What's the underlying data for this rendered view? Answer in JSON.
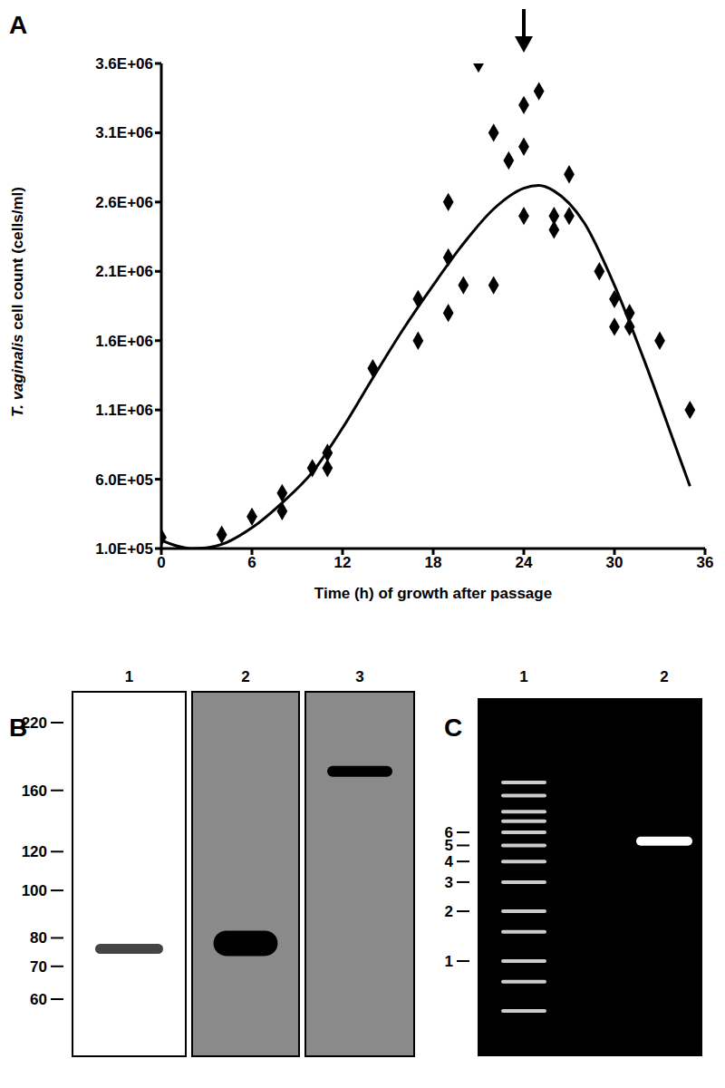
{
  "chart_data": {
    "type": "scatter",
    "panel": "A",
    "xlabel": "Time (h) of growth after passage",
    "ylabel": "T. vaginalis cell count (cells/ml)",
    "xlim": [
      0,
      36
    ],
    "xticks": [
      0,
      6,
      12,
      18,
      24,
      30,
      36
    ],
    "ylim": [
      100000,
      3600000
    ],
    "yticks": [
      {
        "value": 100000,
        "label": "1.0E+05"
      },
      {
        "value": 600000,
        "label": "6.0E+05"
      },
      {
        "value": 1100000,
        "label": "1.1E+06"
      },
      {
        "value": 1600000,
        "label": "1.6E+06"
      },
      {
        "value": 2100000,
        "label": "2.1E+06"
      },
      {
        "value": 2600000,
        "label": "2.6E+06"
      },
      {
        "value": 3100000,
        "label": "3.1E+06"
      },
      {
        "value": 3600000,
        "label": "3.6E+06"
      }
    ],
    "grid": false,
    "series": [
      {
        "type": "scatter",
        "marker": "diamond",
        "color": "#000000",
        "x": [
          0,
          4,
          6,
          8,
          8,
          10,
          11,
          11,
          14,
          17,
          17,
          19,
          19,
          19,
          20,
          21,
          22,
          22,
          23,
          24,
          24,
          24,
          25,
          26,
          26,
          27,
          27,
          29,
          30,
          30,
          31,
          31,
          33,
          35
        ],
        "values": [
          180000,
          200000,
          330000,
          500000,
          370000,
          680000,
          680000,
          790000,
          1400000,
          1900000,
          1600000,
          2600000,
          2200000,
          1800000,
          2000000,
          3600000,
          3100000,
          2000000,
          2900000,
          3300000,
          3000000,
          2500000,
          3400000,
          2500000,
          2400000,
          2800000,
          2500000,
          2100000,
          1900000,
          1700000,
          1800000,
          1700000,
          1600000,
          1100000
        ]
      },
      {
        "type": "line",
        "line_style": "solid",
        "color": "#000000",
        "x": [
          0,
          1,
          2,
          3,
          4,
          6,
          8,
          10,
          12,
          14,
          16,
          18,
          20,
          22,
          24,
          25,
          26,
          28,
          30,
          32,
          34,
          35
        ],
        "values": [
          160000,
          120000,
          100000,
          105000,
          130000,
          250000,
          430000,
          650000,
          970000,
          1330000,
          1680000,
          2000000,
          2300000,
          2550000,
          2700000,
          2720000,
          2680000,
          2450000,
          2000000,
          1450000,
          850000,
          550000
        ]
      }
    ],
    "annotations": [
      {
        "x": 24,
        "marker": "arrow"
      }
    ]
  },
  "blot": {
    "panel": "B",
    "markers": [
      220,
      160,
      120,
      100,
      80,
      70,
      60
    ],
    "lanes": [
      {
        "label": "1",
        "bands": [
          76
        ]
      },
      {
        "label": "2",
        "bands": [
          78
        ]
      },
      {
        "label": "3",
        "bands": [
          175
        ]
      }
    ]
  },
  "gel": {
    "panel": "C",
    "markers": [
      6,
      5,
      4,
      3,
      2,
      1
    ],
    "lanes": [
      {
        "label": "1",
        "bands": [
          12,
          10,
          8,
          7,
          6,
          5,
          4,
          3,
          2,
          1.5,
          1,
          0.75,
          0.5
        ]
      },
      {
        "label": "2",
        "bands": [
          5.3
        ]
      }
    ]
  }
}
